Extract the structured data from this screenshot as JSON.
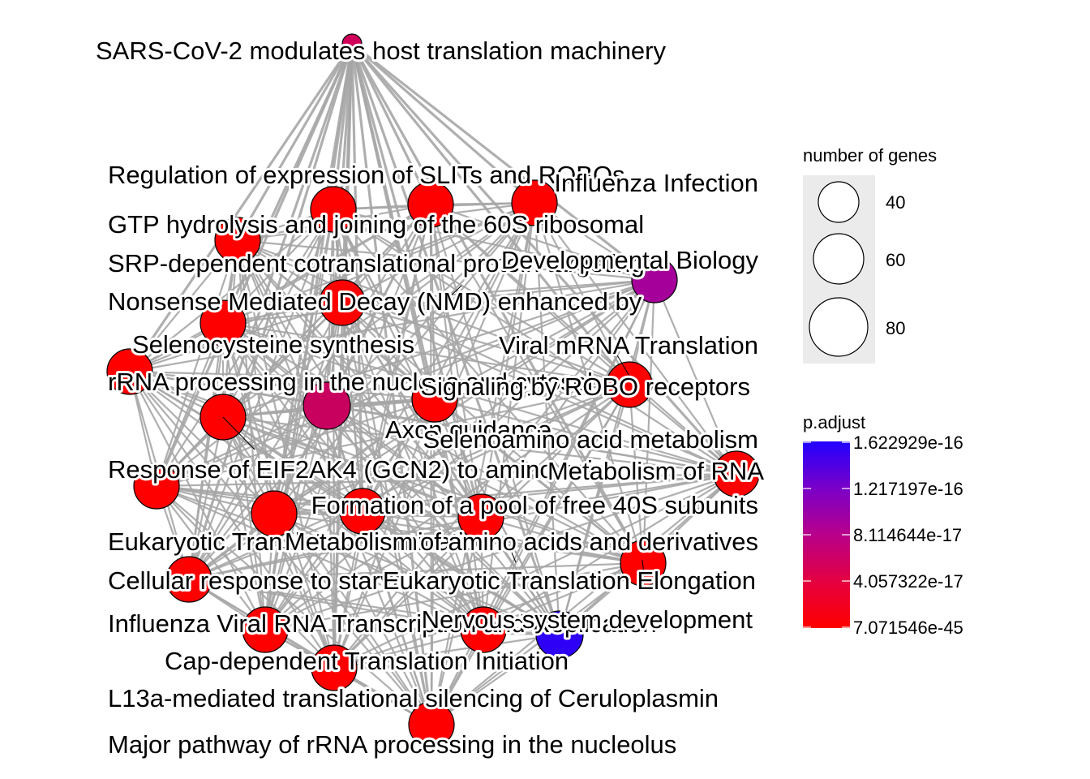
{
  "diagram": {
    "type": "enrichment-map network",
    "nodes": [
      {
        "label": "SARS-CoV-2 modulates host translation machinery",
        "color": "#D0005A"
      },
      {
        "label": "Regulation of expression of SLITs and ROBOs",
        "color": "#FF0000"
      },
      {
        "label": "Influenza Infection",
        "color": "#FF0000"
      },
      {
        "label": "GTP hydrolysis and joining of the 60S ribosomal",
        "color": "#FF0000"
      },
      {
        "label": "SRP-dependent cotranslational protein targeting",
        "color": "#FF0000"
      },
      {
        "label": "Developmental Biology",
        "color": "#A5009A"
      },
      {
        "label": "Nonsense Mediated Decay (NMD) enhanced by",
        "color": "#FF0000"
      },
      {
        "label": "Selenocysteine synthesis",
        "color": "#FF0000"
      },
      {
        "label": "Viral mRNA Translation",
        "color": "#FF0000"
      },
      {
        "label": "rRNA processing in the nucleus and cytosol",
        "color": "#FF0000"
      },
      {
        "label": "Signaling by ROBO receptors",
        "color": "#C8005E"
      },
      {
        "label": "Axon guidance",
        "color": "#FF0000"
      },
      {
        "label": "Selenoamino acid metabolism",
        "color": "#FF0000"
      },
      {
        "label": "Response of EIF2AK4 (GCN2) to amino acid",
        "color": "#FF0000"
      },
      {
        "label": "Metabolism of RNA",
        "color": "#FF0000"
      },
      {
        "label": "Formation of a pool of free 40S subunits",
        "color": "#FF0000"
      },
      {
        "label": "Eukaryotic Translation Termination",
        "color": "#FF0000"
      },
      {
        "label": "Metabolism of amino acids and derivatives",
        "color": "#FF0000"
      },
      {
        "label": "Cellular response to starvation",
        "color": "#FF0000"
      },
      {
        "label": "Eukaryotic Translation Elongation",
        "color": "#FF0000"
      },
      {
        "label": "Influenza Viral RNA Transcription and Replication",
        "color": "#FF0000"
      },
      {
        "label": "Nervous system development",
        "color": "#2E00F6"
      },
      {
        "label": "Cap-dependent Translation Initiation",
        "color": "#FF0000"
      },
      {
        "label": "L13a-mediated translational silencing of Ceruloplasmin",
        "color": "#FF0000"
      },
      {
        "label": "Major pathway of rRNA processing in the nucleolus",
        "color": "#FF0000"
      }
    ]
  },
  "legend": {
    "size_title": "number of genes",
    "size_items": [
      "40",
      "60",
      "80"
    ],
    "color_title": "p.adjust",
    "color_ticks": [
      "1.622929e-16",
      "1.217197e-16",
      "8.114644e-17",
      "4.057322e-17",
      "7.071546e-45"
    ],
    "colors": {
      "low": "#FF0000",
      "high": "#2200FF"
    }
  },
  "style": {
    "edge_color": "#A6A6A6",
    "node_outline": "#000000"
  }
}
